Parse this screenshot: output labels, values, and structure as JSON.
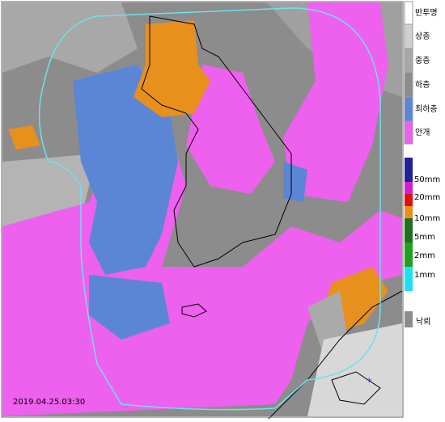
{
  "map": {
    "timestamp": "2019.04.25.03:30",
    "cloud_legend": [
      "반투명",
      "상층",
      "중층",
      "하층",
      "최하층",
      "안개"
    ],
    "rain_legend": [
      "50mm",
      "20mm",
      "10mm",
      "5mm",
      "2mm",
      "1mm"
    ],
    "lightning_label": "낙뢰"
  }
}
